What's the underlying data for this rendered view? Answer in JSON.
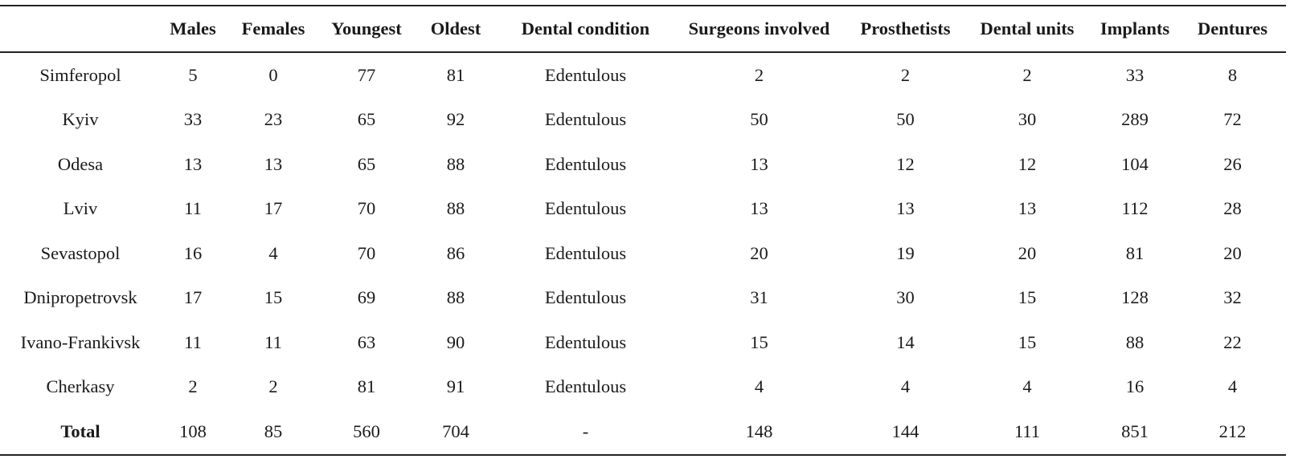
{
  "table": {
    "headers": [
      "",
      "Males",
      "Females",
      "Youngest",
      "Oldest",
      "Dental condition",
      "Surgeons involved",
      "Prosthetists",
      "Dental units",
      "Implants",
      "Dentures"
    ],
    "rows": [
      [
        "Simferopol",
        "5",
        "0",
        "77",
        "81",
        "Edentulous",
        "2",
        "2",
        "2",
        "33",
        "8"
      ],
      [
        "Kyiv",
        "33",
        "23",
        "65",
        "92",
        "Edentulous",
        "50",
        "50",
        "30",
        "289",
        "72"
      ],
      [
        "Odesa",
        "13",
        "13",
        "65",
        "88",
        "Edentulous",
        "13",
        "12",
        "12",
        "104",
        "26"
      ],
      [
        "Lviv",
        "11",
        "17",
        "70",
        "88",
        "Edentulous",
        "13",
        "13",
        "13",
        "112",
        "28"
      ],
      [
        "Sevastopol",
        "16",
        "4",
        "70",
        "86",
        "Edentulous",
        "20",
        "19",
        "20",
        "81",
        "20"
      ],
      [
        "Dnipropetrovsk",
        "17",
        "15",
        "69",
        "88",
        "Edentulous",
        "31",
        "30",
        "15",
        "128",
        "32"
      ],
      [
        "Ivano-Frankivsk",
        "11",
        "11",
        "63",
        "90",
        "Edentulous",
        "15",
        "14",
        "15",
        "88",
        "22"
      ],
      [
        "Cherkasy",
        "2",
        "2",
        "81",
        "91",
        "Edentulous",
        "4",
        "4",
        "4",
        "16",
        "4"
      ]
    ],
    "total": [
      "Total",
      "108",
      "85",
      "560",
      "704",
      "-",
      "148",
      "144",
      "111",
      "851",
      "212"
    ]
  }
}
